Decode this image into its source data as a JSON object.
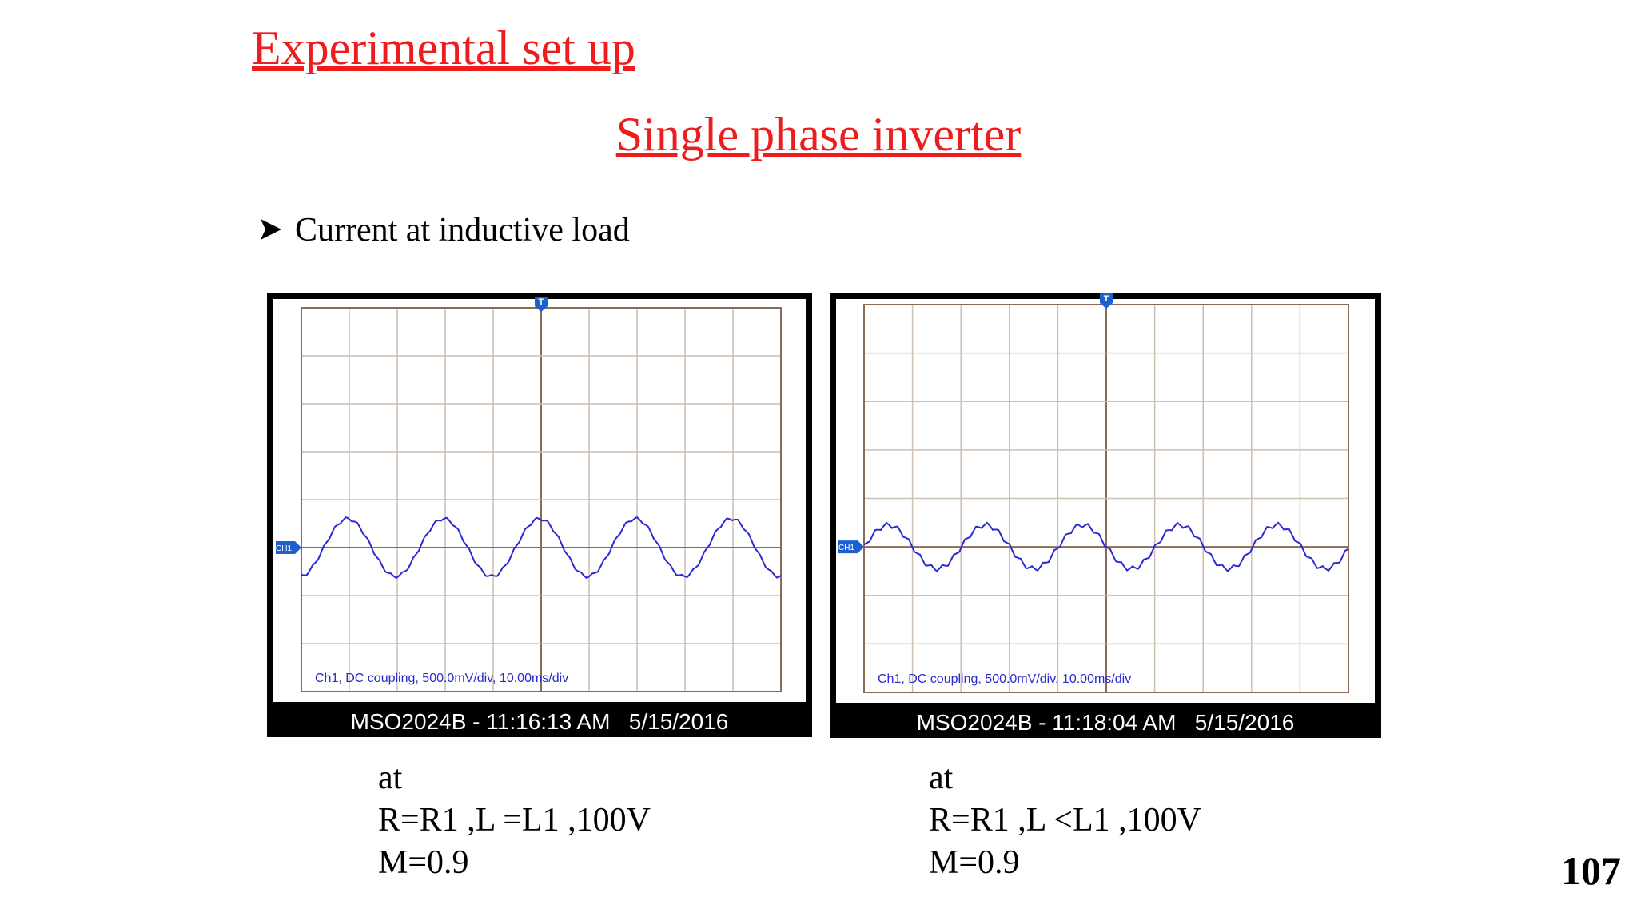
{
  "header": {
    "title": "Experimental set up",
    "subtitle": "Single phase inverter"
  },
  "bullet": "Current at inductive load",
  "scopes": [
    {
      "trigger": "T",
      "channel": "CH1",
      "settings": "Ch1, DC coupling, 500.0mV/div, 10.00ms/div",
      "footer": "MSO2024B - 11:16:13 AM   5/15/2016",
      "caption": [
        "at",
        "R=R1 ,L =L1 ,100V",
        "M=0.9"
      ]
    },
    {
      "trigger": "T",
      "channel": "CH1",
      "settings": "Ch1, DC coupling, 500.0mV/div, 10.00ms/div",
      "footer": "MSO2024B - 11:18:04 AM   5/15/2016",
      "caption": [
        "at",
        "R=R1 ,L <L1 ,100V",
        "M=0.9"
      ]
    }
  ],
  "page_number": "107"
}
